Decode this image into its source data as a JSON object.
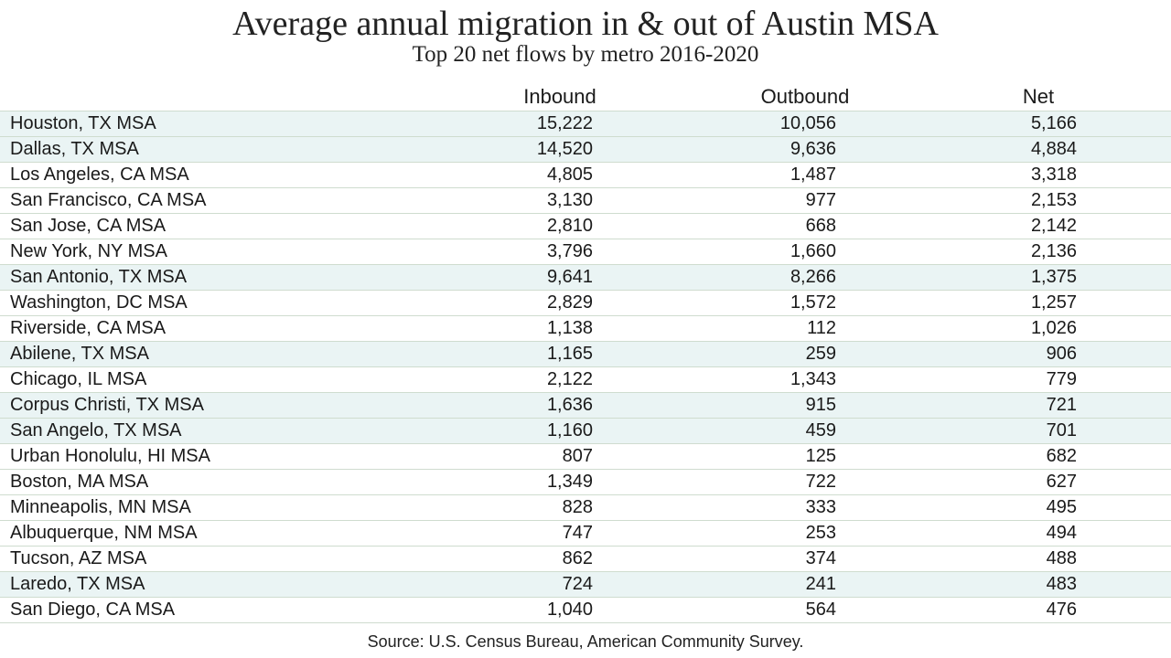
{
  "title": "Average annual migration in & out of Austin MSA",
  "subtitle": "Top 20 net flows by metro  2016-2020",
  "source": "Source:  U.S. Census Bureau, American Community Survey.",
  "colors": {
    "highlight_row": "#eaf4f4",
    "row_rule": "#cfdccf"
  },
  "chart_data": {
    "type": "table",
    "title": "Average annual migration in & out of Austin MSA",
    "subtitle": "Top 20 net flows by metro  2016-2020",
    "columns": [
      "Inbound",
      "Outbound",
      "Net"
    ],
    "rows": [
      {
        "metro": "Houston, TX MSA",
        "inbound": "15,222",
        "outbound": "10,056",
        "net": "5,166",
        "highlight": true
      },
      {
        "metro": "Dallas, TX MSA",
        "inbound": "14,520",
        "outbound": "9,636",
        "net": "4,884",
        "highlight": true
      },
      {
        "metro": "Los Angeles, CA MSA",
        "inbound": "4,805",
        "outbound": "1,487",
        "net": "3,318",
        "highlight": false
      },
      {
        "metro": "San Francisco, CA MSA",
        "inbound": "3,130",
        "outbound": "977",
        "net": "2,153",
        "highlight": false
      },
      {
        "metro": "San Jose, CA MSA",
        "inbound": "2,810",
        "outbound": "668",
        "net": "2,142",
        "highlight": false
      },
      {
        "metro": "New York, NY MSA",
        "inbound": "3,796",
        "outbound": "1,660",
        "net": "2,136",
        "highlight": false
      },
      {
        "metro": "San Antonio, TX MSA",
        "inbound": "9,641",
        "outbound": "8,266",
        "net": "1,375",
        "highlight": true
      },
      {
        "metro": "Washington, DC MSA",
        "inbound": "2,829",
        "outbound": "1,572",
        "net": "1,257",
        "highlight": false
      },
      {
        "metro": "Riverside, CA MSA",
        "inbound": "1,138",
        "outbound": "112",
        "net": "1,026",
        "highlight": false
      },
      {
        "metro": "Abilene, TX MSA",
        "inbound": "1,165",
        "outbound": "259",
        "net": "906",
        "highlight": true
      },
      {
        "metro": "Chicago, IL MSA",
        "inbound": "2,122",
        "outbound": "1,343",
        "net": "779",
        "highlight": false
      },
      {
        "metro": "Corpus Christi, TX MSA",
        "inbound": "1,636",
        "outbound": "915",
        "net": "721",
        "highlight": true
      },
      {
        "metro": "San Angelo, TX MSA",
        "inbound": "1,160",
        "outbound": "459",
        "net": "701",
        "highlight": true
      },
      {
        "metro": "Urban Honolulu, HI MSA",
        "inbound": "807",
        "outbound": "125",
        "net": "682",
        "highlight": false
      },
      {
        "metro": "Boston, MA MSA",
        "inbound": "1,349",
        "outbound": "722",
        "net": "627",
        "highlight": false
      },
      {
        "metro": "Minneapolis, MN MSA",
        "inbound": "828",
        "outbound": "333",
        "net": "495",
        "highlight": false
      },
      {
        "metro": "Albuquerque, NM MSA",
        "inbound": "747",
        "outbound": "253",
        "net": "494",
        "highlight": false
      },
      {
        "metro": "Tucson, AZ MSA",
        "inbound": "862",
        "outbound": "374",
        "net": "488",
        "highlight": false
      },
      {
        "metro": "Laredo, TX MSA",
        "inbound": "724",
        "outbound": "241",
        "net": "483",
        "highlight": true
      },
      {
        "metro": "San Diego, CA MSA",
        "inbound": "1,040",
        "outbound": "564",
        "net": "476",
        "highlight": false
      }
    ]
  }
}
